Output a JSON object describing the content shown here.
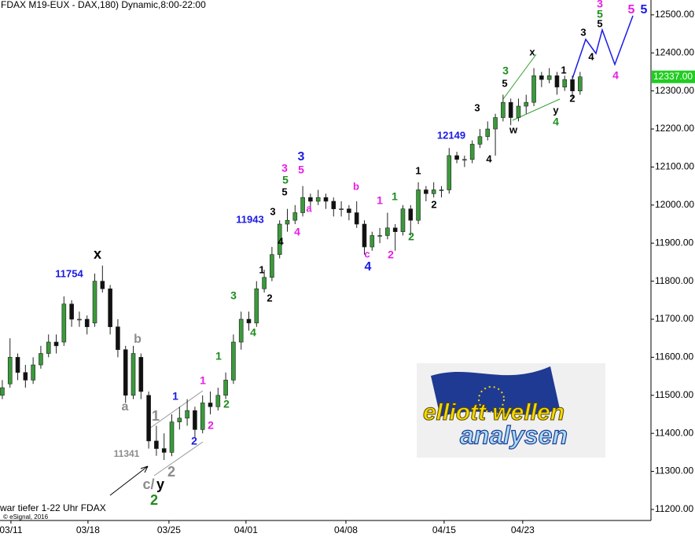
{
  "chart_data": {
    "type": "candlestick",
    "title": "FDAX M19-EUX - DAX,180) Dynamic,8:00-22:00",
    "footer": "war tiefer 1-22 Uhr FDAX",
    "copyright": "© eSignal, 2016",
    "up_color": "#3a9a3a",
    "down_color": "#111111",
    "ylim": [
      11171,
      12539
    ],
    "xlim": [
      -0.3,
      84.2
    ],
    "yticks": [
      {
        "value": 11200,
        "label": "11200.00"
      },
      {
        "value": 11300,
        "label": "11300.00"
      },
      {
        "value": 11400,
        "label": "11400.00"
      },
      {
        "value": 11500,
        "label": "11500.00"
      },
      {
        "value": 11600,
        "label": "11600.00"
      },
      {
        "value": 11700,
        "label": "11700.00"
      },
      {
        "value": 11800,
        "label": "11800.00"
      },
      {
        "value": 11900,
        "label": "11900.00"
      },
      {
        "value": 12000,
        "label": "12000.00"
      },
      {
        "value": 12100,
        "label": "12100.00"
      },
      {
        "value": 12200,
        "label": "12200.00"
      },
      {
        "value": 12300,
        "label": "12300.00"
      },
      {
        "value": 12400,
        "label": "12400.00"
      },
      {
        "value": 12500,
        "label": "12500.00"
      }
    ],
    "xticks": [
      {
        "value": 1.12,
        "label": "03/11"
      },
      {
        "value": 11.12,
        "label": "03/18"
      },
      {
        "value": 21.63,
        "label": "03/25"
      },
      {
        "value": 31.63,
        "label": "04/01"
      },
      {
        "value": 44.6,
        "label": "04/08"
      },
      {
        "value": 57.35,
        "label": "04/15"
      },
      {
        "value": 67.55,
        "label": "04/23"
      }
    ],
    "last_price": {
      "value": 12337,
      "label": "12337.00",
      "color": "#22cc22"
    },
    "ohlc": [
      [
        11500,
        11540,
        11490,
        11520
      ],
      [
        11530,
        11650,
        11520,
        11600
      ],
      [
        11600,
        11610,
        11540,
        11560
      ],
      [
        11560,
        11580,
        11520,
        11540
      ],
      [
        11540,
        11600,
        11530,
        11580
      ],
      [
        11580,
        11630,
        11570,
        11610
      ],
      [
        11610,
        11660,
        11600,
        11640
      ],
      [
        11640,
        11660,
        11610,
        11630
      ],
      [
        11640,
        11760,
        11630,
        11740
      ],
      [
        11740,
        11750,
        11680,
        11700
      ],
      [
        11700,
        11720,
        11680,
        11700
      ],
      [
        11700,
        11710,
        11660,
        11680
      ],
      [
        11690,
        11820,
        11680,
        11800
      ],
      [
        11800,
        11841,
        11770,
        11780
      ],
      [
        11780,
        11790,
        11660,
        11680
      ],
      [
        11680,
        11700,
        11600,
        11620
      ],
      [
        11620,
        11630,
        11480,
        11500
      ],
      [
        11500,
        11630,
        11490,
        11610
      ],
      [
        11600,
        11610,
        11490,
        11510
      ],
      [
        11500,
        11510,
        11360,
        11380
      ],
      [
        11380,
        11420,
        11341,
        11360
      ],
      [
        11360,
        11400,
        11330,
        11350
      ],
      [
        11350,
        11450,
        11340,
        11430
      ],
      [
        11430,
        11470,
        11410,
        11440
      ],
      [
        11440,
        11490,
        11420,
        11460
      ],
      [
        11460,
        11470,
        11390,
        11410
      ],
      [
        11410,
        11500,
        11400,
        11480
      ],
      [
        11480,
        11510,
        11450,
        11470
      ],
      [
        11470,
        11520,
        11460,
        11500
      ],
      [
        11500,
        11560,
        11490,
        11540
      ],
      [
        11540,
        11660,
        11530,
        11640
      ],
      [
        11640,
        11720,
        11620,
        11700
      ],
      [
        11700,
        11720,
        11670,
        11690
      ],
      [
        11690,
        11800,
        11680,
        11780
      ],
      [
        11780,
        11830,
        11770,
        11810
      ],
      [
        11810,
        11890,
        11800,
        11870
      ],
      [
        11870,
        11960,
        11860,
        11950
      ],
      [
        11950,
        11990,
        11930,
        11960
      ],
      [
        11960,
        12000,
        11950,
        11980
      ],
      [
        11980,
        12050,
        11970,
        12020
      ],
      [
        12020,
        12030,
        11990,
        12010
      ],
      [
        12010,
        12040,
        12000,
        12020
      ],
      [
        12020,
        12030,
        11990,
        12010
      ],
      [
        12010,
        12020,
        11970,
        11990
      ],
      [
        11990,
        12010,
        11970,
        11990
      ],
      [
        11990,
        12000,
        11960,
        11980
      ],
      [
        11980,
        12010,
        11940,
        11950
      ],
      [
        11950,
        11960,
        11870,
        11890
      ],
      [
        11890,
        11930,
        11880,
        11920
      ],
      [
        11920,
        11940,
        11900,
        11920
      ],
      [
        11920,
        11980,
        11910,
        11940
      ],
      [
        11940,
        11950,
        11880,
        11930
      ],
      [
        11930,
        12000,
        11920,
        11990
      ],
      [
        11990,
        12000,
        11920,
        11960
      ],
      [
        11960,
        12060,
        11950,
        12040
      ],
      [
        12040,
        12050,
        12010,
        12030
      ],
      [
        12030,
        12060,
        12020,
        12040
      ],
      [
        12040,
        12050,
        12020,
        12040
      ],
      [
        12040,
        12150,
        12030,
        12130
      ],
      [
        12130,
        12140,
        12110,
        12120
      ],
      [
        12120,
        12130,
        12100,
        12120
      ],
      [
        12120,
        12170,
        12110,
        12160
      ],
      [
        12160,
        12200,
        12150,
        12180
      ],
      [
        12180,
        12220,
        12170,
        12200
      ],
      [
        12200,
        12240,
        12130,
        12230
      ],
      [
        12230,
        12290,
        12220,
        12270
      ],
      [
        12270,
        12280,
        12210,
        12230
      ],
      [
        12230,
        12280,
        12220,
        12260
      ],
      [
        12260,
        12290,
        12240,
        12270
      ],
      [
        12270,
        12360,
        12260,
        12340
      ],
      [
        12340,
        12350,
        12310,
        12330
      ],
      [
        12330,
        12360,
        12320,
        12340
      ],
      [
        12340,
        12350,
        12290,
        12310
      ],
      [
        12310,
        12340,
        12300,
        12330
      ],
      [
        12330,
        12340,
        12280,
        12300
      ],
      [
        12300,
        12350,
        12290,
        12337
      ]
    ],
    "annotations": [
      {
        "text": "x",
        "color": "#000000"
      },
      {
        "text": "11754",
        "color": "#1a1ae6"
      },
      {
        "text": "b",
        "color": "#8c8c8c"
      },
      {
        "text": "a",
        "color": "#8c8c8c"
      },
      {
        "text": "1",
        "color": "#8c8c8c"
      },
      {
        "text": "11341",
        "color": "#8c8c8c"
      },
      {
        "text": "c/",
        "color": "#8c8c8c"
      },
      {
        "text": "y",
        "color": "#000000"
      },
      {
        "text": "2",
        "color": "#8c8c8c"
      },
      {
        "text": "2",
        "color": "#1e8c1e"
      },
      {
        "text": "1",
        "color": "#1a1ae6"
      },
      {
        "text": "2",
        "color": "#1a1ae6"
      },
      {
        "text": "1",
        "color": "#e61ee6"
      },
      {
        "text": "2",
        "color": "#e61ee6"
      },
      {
        "text": "1",
        "color": "#1e8c1e"
      },
      {
        "text": "2",
        "color": "#1e8c1e"
      },
      {
        "text": "3",
        "color": "#1e8c1e"
      },
      {
        "text": "4",
        "color": "#1e8c1e"
      },
      {
        "text": "1",
        "color": "#000000"
      },
      {
        "text": "2",
        "color": "#000000"
      },
      {
        "text": "11943",
        "color": "#1a1ae6"
      },
      {
        "text": "3",
        "color": "#000000"
      },
      {
        "text": "4",
        "color": "#000000"
      },
      {
        "text": "4",
        "color": "#e61ee6"
      },
      {
        "text": "3",
        "color": "#e61ee6"
      },
      {
        "text": "5",
        "color": "#e61ee6"
      },
      {
        "text": "3",
        "color": "#1a1ae6"
      },
      {
        "text": "5",
        "color": "#1e8c1e"
      },
      {
        "text": "5",
        "color": "#000000"
      },
      {
        "text": "a",
        "color": "#e61ee6"
      },
      {
        "text": "b",
        "color": "#e61ee6"
      },
      {
        "text": "c",
        "color": "#e61ee6"
      },
      {
        "text": "4",
        "color": "#1a1ae6"
      },
      {
        "text": "1",
        "color": "#e61ee6"
      },
      {
        "text": "2",
        "color": "#e61ee6"
      },
      {
        "text": "1",
        "color": "#1e8c1e"
      },
      {
        "text": "2",
        "color": "#1e8c1e"
      },
      {
        "text": "1",
        "color": "#000000"
      },
      {
        "text": "2",
        "color": "#000000"
      },
      {
        "text": "12149",
        "color": "#1a1ae6"
      },
      {
        "text": "3",
        "color": "#000000"
      },
      {
        "text": "4",
        "color": "#000000"
      },
      {
        "text": "3",
        "color": "#1e8c1e"
      },
      {
        "text": "5",
        "color": "#000000"
      },
      {
        "text": "x",
        "color": "#000000"
      },
      {
        "text": "w",
        "color": "#000000"
      },
      {
        "text": "y",
        "color": "#000000"
      },
      {
        "text": "4",
        "color": "#1e8c1e"
      },
      {
        "text": "1",
        "color": "#000000"
      },
      {
        "text": "2",
        "color": "#000000"
      },
      {
        "text": "3",
        "color": "#000000"
      },
      {
        "text": "4",
        "color": "#000000"
      },
      {
        "text": "5",
        "color": "#000000"
      },
      {
        "text": "5",
        "color": "#1e8c1e"
      },
      {
        "text": "3",
        "color": "#e61ee6"
      },
      {
        "text": "4",
        "color": "#e61ee6"
      },
      {
        "text": "5",
        "color": "#e61ee6"
      },
      {
        "text": "5",
        "color": "#1a1ae6"
      }
    ],
    "logo": {
      "line1": "elliott wellen",
      "line2": "analysen"
    }
  }
}
